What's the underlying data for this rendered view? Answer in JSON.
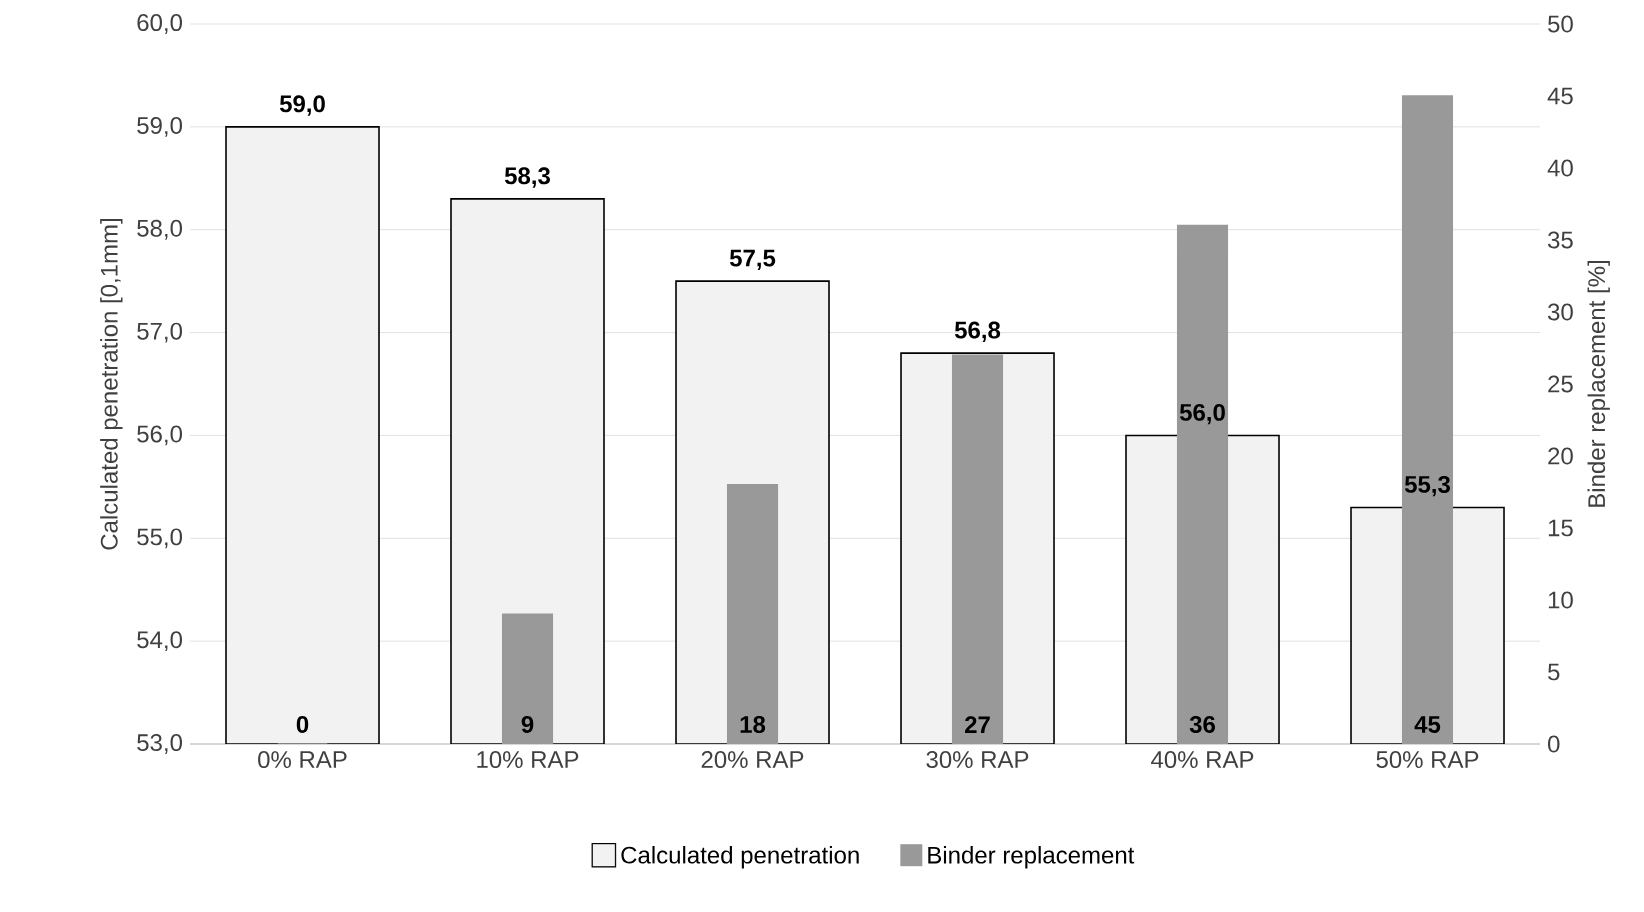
{
  "chart_data": {
    "type": "bar",
    "categories": [
      "0% RAP",
      "10% RAP",
      "20% RAP",
      "30% RAP",
      "40% RAP",
      "50% RAP"
    ],
    "ylabel": "Calculated penetration [0,1mm]",
    "y2label": "Binder replacement [%]",
    "ylim": [
      53,
      60
    ],
    "yticks": [
      {
        "value": 53,
        "label": "53,0"
      },
      {
        "value": 54,
        "label": "54,0"
      },
      {
        "value": 55,
        "label": "55,0"
      },
      {
        "value": 56,
        "label": "56,0"
      },
      {
        "value": 57,
        "label": "57,0"
      },
      {
        "value": 58,
        "label": "58,0"
      },
      {
        "value": 59,
        "label": "59,0"
      },
      {
        "value": 60,
        "label": "60,0"
      }
    ],
    "y2lim": [
      0,
      50
    ],
    "y2ticks": [
      0,
      5,
      10,
      15,
      20,
      25,
      30,
      35,
      40,
      45,
      50
    ],
    "grid": "y",
    "legend": "bottom",
    "series": [
      {
        "name": "Calculated penetration",
        "color": "#f2f2f2",
        "values": [
          59.0,
          58.3,
          57.5,
          56.8,
          56.0,
          55.3
        ],
        "value_labels": [
          "59,0",
          "58,3",
          "57,5",
          "56,8",
          "56,0",
          "55,3"
        ]
      },
      {
        "name": "Binder replacement",
        "color": "#999999",
        "axis": "y2",
        "values": [
          0,
          9,
          18,
          27,
          36,
          45
        ],
        "value_labels": [
          "0",
          "9",
          "18",
          "27",
          "36",
          "45"
        ]
      }
    ]
  }
}
